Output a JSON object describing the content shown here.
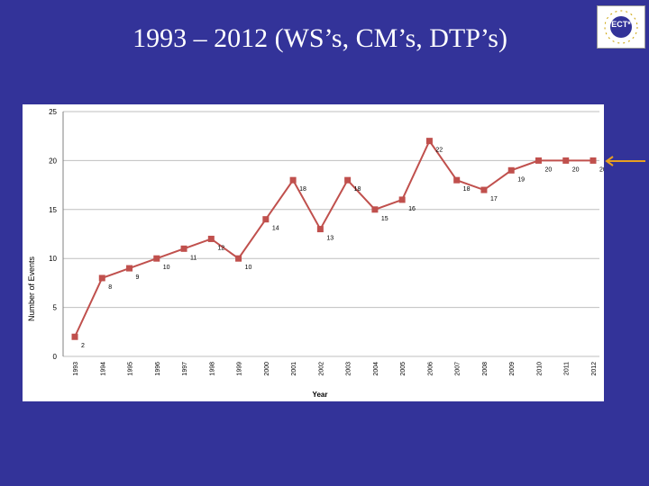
{
  "slide": {
    "title": "1993 – 2012 (WS’s, CM’s, DTP’s)"
  },
  "logo": {
    "text": "ECT*"
  },
  "colors": {
    "background": "#333399",
    "series": "#c0504d",
    "grid": "#bfbfbf",
    "arrow": "#e8a020"
  },
  "chart_data": {
    "type": "line",
    "xlabel": "Year",
    "ylabel": "Number of Events",
    "x": [
      "1993",
      "1994",
      "1995",
      "1996",
      "1997",
      "1998",
      "1999",
      "2000",
      "2001",
      "2002",
      "2003",
      "2004",
      "2005",
      "2006",
      "2007",
      "2008",
      "2009",
      "2010",
      "2011",
      "2012"
    ],
    "series": [
      {
        "values": [
          2,
          8,
          9,
          10,
          11,
          12,
          10,
          14,
          18,
          13,
          18,
          15,
          16,
          22,
          18,
          17,
          19,
          20,
          20,
          20
        ]
      }
    ],
    "ylim": [
      0,
      25
    ],
    "yticks": [
      0,
      5,
      10,
      15,
      20,
      25
    ],
    "grid": true,
    "data_labels": true,
    "legend": "none"
  }
}
